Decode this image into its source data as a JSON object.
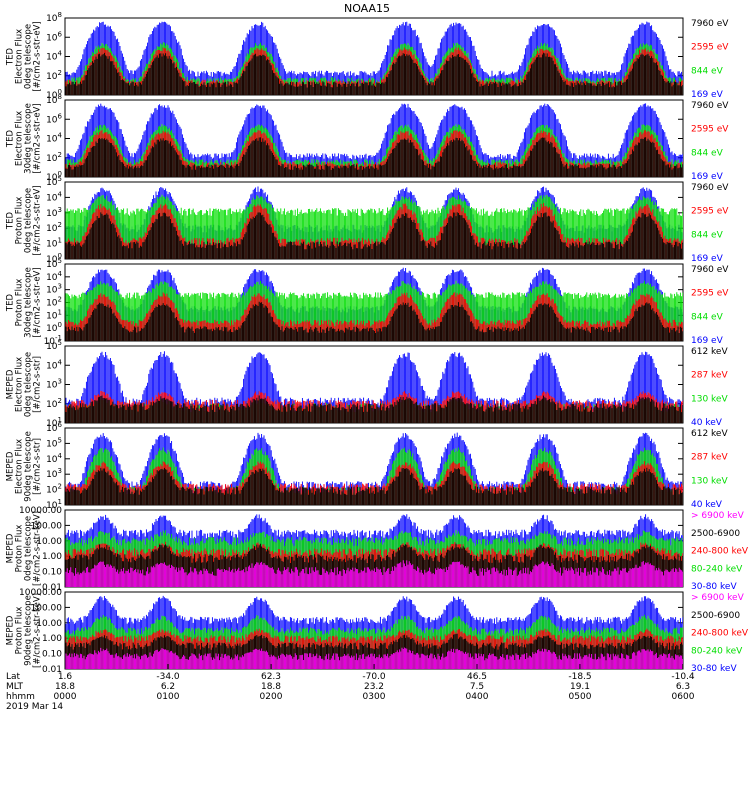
{
  "title": "NOAA15",
  "colors": {
    "black": "#000000",
    "blue": "#0000ff",
    "red": "#ff0000",
    "green": "#00dd00",
    "magenta": "#ff00ff"
  },
  "panels": [
    {
      "ylabel_lines": [
        "TED",
        "Electron Flux",
        "0deg telescope",
        "[#/cm2-s-str-eV]"
      ],
      "ticks": [
        {
          "label": "10",
          "exp": "8"
        },
        {
          "label": "10",
          "exp": "6"
        },
        {
          "label": "10",
          "exp": "4"
        },
        {
          "label": "10",
          "exp": "2"
        },
        {
          "label": "10",
          "exp": "0"
        }
      ],
      "legend": [
        {
          "text": "7960 eV",
          "color": "black"
        },
        {
          "text": "2595 eV",
          "color": "red"
        },
        {
          "text": "844 eV",
          "color": "green"
        },
        {
          "text": "169 eV",
          "color": "blue"
        }
      ]
    },
    {
      "ylabel_lines": [
        "TED",
        "Electron Flux",
        "30deg telescope",
        "[#/cm2-s-str-eV]"
      ],
      "ticks": [
        {
          "label": "10",
          "exp": "8"
        },
        {
          "label": "10",
          "exp": "6"
        },
        {
          "label": "10",
          "exp": "4"
        },
        {
          "label": "10",
          "exp": "2"
        },
        {
          "label": "10",
          "exp": "0"
        }
      ],
      "legend": [
        {
          "text": "7960 eV",
          "color": "black"
        },
        {
          "text": "2595 eV",
          "color": "red"
        },
        {
          "text": "844 eV",
          "color": "green"
        },
        {
          "text": "169 eV",
          "color": "blue"
        }
      ]
    },
    {
      "ylabel_lines": [
        "TED",
        "Proton Flux",
        "0deg telescope",
        "[#/cm2-s-str-eV]"
      ],
      "ticks": [
        {
          "label": "10",
          "exp": "5"
        },
        {
          "label": "10",
          "exp": "4"
        },
        {
          "label": "10",
          "exp": "3"
        },
        {
          "label": "10",
          "exp": "2"
        },
        {
          "label": "10",
          "exp": "1"
        },
        {
          "label": "10",
          "exp": "0"
        }
      ],
      "legend": [
        {
          "text": "7960 eV",
          "color": "black"
        },
        {
          "text": "2595 eV",
          "color": "red"
        },
        {
          "text": "844 eV",
          "color": "green"
        },
        {
          "text": "169 eV",
          "color": "blue"
        }
      ]
    },
    {
      "ylabel_lines": [
        "TED",
        "Proton Flux",
        "30deg telescope",
        "[#/cm2-s-str-eV]"
      ],
      "ticks": [
        {
          "label": "10",
          "exp": "5"
        },
        {
          "label": "10",
          "exp": "4"
        },
        {
          "label": "10",
          "exp": "3"
        },
        {
          "label": "10",
          "exp": "2"
        },
        {
          "label": "10",
          "exp": "1"
        },
        {
          "label": "10",
          "exp": "0"
        },
        {
          "label": "10",
          "exp": "-1"
        }
      ],
      "legend": [
        {
          "text": "7960 eV",
          "color": "black"
        },
        {
          "text": "2595 eV",
          "color": "red"
        },
        {
          "text": "844 eV",
          "color": "green"
        },
        {
          "text": "169 eV",
          "color": "blue"
        }
      ]
    },
    {
      "ylabel_lines": [
        "MEPED",
        "Electron Flux",
        "0deg telescope",
        "[#/cm2-s-str]"
      ],
      "ticks": [
        {
          "label": "10",
          "exp": "5"
        },
        {
          "label": "10",
          "exp": "4"
        },
        {
          "label": "10",
          "exp": "3"
        },
        {
          "label": "10",
          "exp": "2"
        },
        {
          "label": "10",
          "exp": "1"
        }
      ],
      "legend": [
        {
          "text": "612 keV",
          "color": "black"
        },
        {
          "text": "287 keV",
          "color": "red"
        },
        {
          "text": "130 keV",
          "color": "green"
        },
        {
          "text": "40 keV",
          "color": "blue"
        }
      ]
    },
    {
      "ylabel_lines": [
        "MEPED",
        "Electron Flux",
        "90deg telescope",
        "[#/cm2-s-str]"
      ],
      "ticks": [
        {
          "label": "10",
          "exp": "6"
        },
        {
          "label": "10",
          "exp": "5"
        },
        {
          "label": "10",
          "exp": "4"
        },
        {
          "label": "10",
          "exp": "3"
        },
        {
          "label": "10",
          "exp": "2"
        },
        {
          "label": "10",
          "exp": "1"
        }
      ],
      "legend": [
        {
          "text": "612 keV",
          "color": "black"
        },
        {
          "text": "287 keV",
          "color": "red"
        },
        {
          "text": "130 keV",
          "color": "green"
        },
        {
          "text": "40 keV",
          "color": "blue"
        }
      ]
    },
    {
      "ylabel_lines": [
        "MEPED",
        "Proton Flux",
        "0deg telescope",
        "[#/cm2-s-str-keV]"
      ],
      "ticks": [
        {
          "label": "10000.00",
          "exp": ""
        },
        {
          "label": "100.00",
          "exp": ""
        },
        {
          "label": "10.00",
          "exp": ""
        },
        {
          "label": "1.00",
          "exp": ""
        },
        {
          "label": "0.10",
          "exp": ""
        },
        {
          "label": "0.01",
          "exp": ""
        }
      ],
      "legend": [
        {
          "text": "> 6900 keV",
          "color": "magenta"
        },
        {
          "text": "2500-6900",
          "color": "black"
        },
        {
          "text": "240-800 keV",
          "color": "red"
        },
        {
          "text": "80-240 keV",
          "color": "green"
        },
        {
          "text": "30-80 keV",
          "color": "blue"
        }
      ]
    },
    {
      "ylabel_lines": [
        "MEPED",
        "Proton Flux",
        "90deg telescope",
        "[#/cm2-s-str-keV]"
      ],
      "ticks": [
        {
          "label": "10000.00",
          "exp": ""
        },
        {
          "label": "100.00",
          "exp": ""
        },
        {
          "label": "10.00",
          "exp": ""
        },
        {
          "label": "1.00",
          "exp": ""
        },
        {
          "label": "0.10",
          "exp": ""
        },
        {
          "label": "0.01",
          "exp": ""
        }
      ],
      "legend": [
        {
          "text": "> 6900 keV",
          "color": "magenta"
        },
        {
          "text": "2500-6900",
          "color": "black"
        },
        {
          "text": "240-800 keV",
          "color": "red"
        },
        {
          "text": "80-240 keV",
          "color": "green"
        },
        {
          "text": "30-80 keV",
          "color": "blue"
        }
      ]
    }
  ],
  "xaxis": {
    "row_labels": [
      "Lat",
      "MLT",
      "hhmm",
      "2019 Mar 14"
    ],
    "ticks": [
      {
        "lat": "1.6",
        "mlt": "18.8",
        "hhmm": "0000"
      },
      {
        "lat": "-34.0",
        "mlt": "6.2",
        "hhmm": "0100"
      },
      {
        "lat": "62.3",
        "mlt": "18.8",
        "hhmm": "0200"
      },
      {
        "lat": "-70.0",
        "mlt": "23.2",
        "hhmm": "0300"
      },
      {
        "lat": "46.5",
        "mlt": "7.5",
        "hhmm": "0400"
      },
      {
        "lat": "-18.5",
        "mlt": "19.1",
        "hhmm": "0500"
      },
      {
        "lat": "-10.4",
        "mlt": "6.3",
        "hhmm": "0600"
      }
    ]
  },
  "chart_data": {
    "type": "line",
    "title": "NOAA15",
    "x": {
      "unit": "hhmm",
      "range": [
        "0000",
        "0600"
      ]
    },
    "log_y": true,
    "overflight_peaks_hhmm": [
      "0022",
      "0057",
      "0153",
      "0318",
      "0348",
      "0439",
      "0538"
    ],
    "series_panels": [
      {
        "panel": 1,
        "series": [
          {
            "name": "7960 eV",
            "color": "#000000",
            "baseline": 30,
            "peak": 8000
          },
          {
            "name": "2595 eV",
            "color": "#ff0000",
            "baseline": 40,
            "peak": 20000
          },
          {
            "name": "844 eV",
            "color": "#00dd00",
            "baseline": 60,
            "peak": 50000
          },
          {
            "name": "169 eV",
            "color": "#0000ff",
            "baseline": 200,
            "peak": 2000000
          }
        ]
      },
      {
        "panel": 2,
        "series": [
          {
            "name": "7960 eV",
            "color": "#000000",
            "baseline": 20,
            "peak": 5000
          },
          {
            "name": "2595 eV",
            "color": "#ff0000",
            "baseline": 30,
            "peak": 20000
          },
          {
            "name": "844 eV",
            "color": "#00dd00",
            "baseline": 50,
            "peak": 60000
          },
          {
            "name": "169 eV",
            "color": "#0000ff",
            "baseline": 150,
            "peak": 3000000
          }
        ]
      },
      {
        "panel": 3,
        "series": [
          {
            "name": "7960 eV",
            "color": "#000000",
            "baseline": 3,
            "peak": 300
          },
          {
            "name": "2595 eV",
            "color": "#ff0000",
            "baseline": 5,
            "peak": 1000
          },
          {
            "name": "844 eV",
            "color": "#00dd00",
            "baseline": 300,
            "peak": 3000
          },
          {
            "name": "169 eV",
            "color": "#0000ff",
            "baseline": 30,
            "peak": 10000
          }
        ]
      },
      {
        "panel": 4,
        "series": [
          {
            "name": "7960 eV",
            "color": "#000000",
            "baseline": 1,
            "peak": 100
          },
          {
            "name": "2595 eV",
            "color": "#ff0000",
            "baseline": 3,
            "peak": 500
          },
          {
            "name": "844 eV",
            "color": "#00dd00",
            "baseline": 300,
            "peak": 3000
          },
          {
            "name": "169 eV",
            "color": "#0000ff",
            "baseline": 30,
            "peak": 30000
          }
        ]
      },
      {
        "panel": 5,
        "series": [
          {
            "name": "612 keV",
            "color": "#000000",
            "baseline": 100,
            "peak": 300
          },
          {
            "name": "287 keV",
            "color": "#ff0000",
            "baseline": 150,
            "peak": 600
          },
          {
            "name": "130 keV",
            "color": "#00dd00",
            "baseline": 100,
            "peak": 200
          },
          {
            "name": "40 keV",
            "color": "#0000ff",
            "baseline": 200,
            "peak": 100000
          }
        ]
      },
      {
        "panel": 6,
        "series": [
          {
            "name": "612 keV",
            "color": "#000000",
            "baseline": 100,
            "peak": 2000
          },
          {
            "name": "287 keV",
            "color": "#ff0000",
            "baseline": 150,
            "peak": 5000
          },
          {
            "name": "130 keV",
            "color": "#00dd00",
            "baseline": 100,
            "peak": 30000
          },
          {
            "name": "40 keV",
            "color": "#0000ff",
            "baseline": 200,
            "peak": 200000
          }
        ]
      },
      {
        "panel": 7,
        "series": [
          {
            "name": "> 6900 keV",
            "color": "#ff00ff",
            "baseline": 0.02,
            "peak": 0.05
          },
          {
            "name": "2500-6900",
            "color": "#000000",
            "baseline": 0.1,
            "peak": 0.5
          },
          {
            "name": "240-800 keV",
            "color": "#ff0000",
            "baseline": 0.2,
            "peak": 0.5
          },
          {
            "name": "80-240 keV",
            "color": "#00dd00",
            "baseline": 0.8,
            "peak": 2
          },
          {
            "name": "30-80 keV",
            "color": "#0000ff",
            "baseline": 2,
            "peak": 20
          }
        ]
      },
      {
        "panel": 8,
        "series": [
          {
            "name": "> 6900 keV",
            "color": "#ff00ff",
            "baseline": 0.02,
            "peak": 0.05
          },
          {
            "name": "2500-6900",
            "color": "#000000",
            "baseline": 0.1,
            "peak": 0.5
          },
          {
            "name": "240-800 keV",
            "color": "#ff0000",
            "baseline": 0.3,
            "peak": 1
          },
          {
            "name": "80-240 keV",
            "color": "#00dd00",
            "baseline": 1,
            "peak": 10
          },
          {
            "name": "30-80 keV",
            "color": "#0000ff",
            "baseline": 5,
            "peak": 200
          }
        ]
      }
    ]
  }
}
